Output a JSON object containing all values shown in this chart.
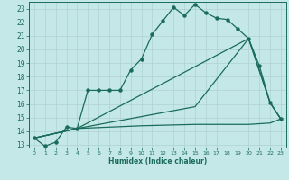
{
  "title": "",
  "xlabel": "Humidex (Indice chaleur)",
  "ylabel": "",
  "bg_color": "#c4e8e8",
  "grid_color": "#b0d0d0",
  "line_color": "#1a6b5a",
  "xlim": [
    -0.5,
    23.5
  ],
  "ylim": [
    12.8,
    23.5
  ],
  "xticks": [
    0,
    1,
    2,
    3,
    4,
    5,
    6,
    7,
    8,
    9,
    10,
    11,
    12,
    13,
    14,
    15,
    16,
    17,
    18,
    19,
    20,
    21,
    22,
    23
  ],
  "yticks": [
    13,
    14,
    15,
    16,
    17,
    18,
    19,
    20,
    21,
    22,
    23
  ],
  "line1": {
    "x": [
      0,
      1,
      2,
      3,
      4,
      5,
      6,
      7,
      8,
      9,
      10,
      11,
      12,
      13,
      14,
      15,
      16,
      17,
      18,
      19,
      20,
      21,
      22,
      23
    ],
    "y": [
      13.5,
      12.9,
      13.2,
      14.3,
      14.2,
      17.0,
      17.0,
      17.0,
      17.0,
      18.5,
      19.3,
      21.1,
      22.1,
      23.1,
      22.5,
      23.3,
      22.7,
      22.3,
      22.2,
      21.5,
      20.8,
      18.8,
      16.1,
      14.9
    ]
  },
  "line2": {
    "x": [
      0,
      4,
      10,
      15,
      20,
      22,
      23
    ],
    "y": [
      13.5,
      14.2,
      14.4,
      14.5,
      14.5,
      14.6,
      14.9
    ]
  },
  "line3": {
    "x": [
      0,
      4,
      20,
      22,
      23
    ],
    "y": [
      13.5,
      14.2,
      20.8,
      16.1,
      14.9
    ]
  },
  "line4": {
    "x": [
      0,
      4,
      15,
      20,
      22,
      23
    ],
    "y": [
      13.5,
      14.2,
      15.8,
      20.8,
      16.1,
      14.9
    ]
  }
}
